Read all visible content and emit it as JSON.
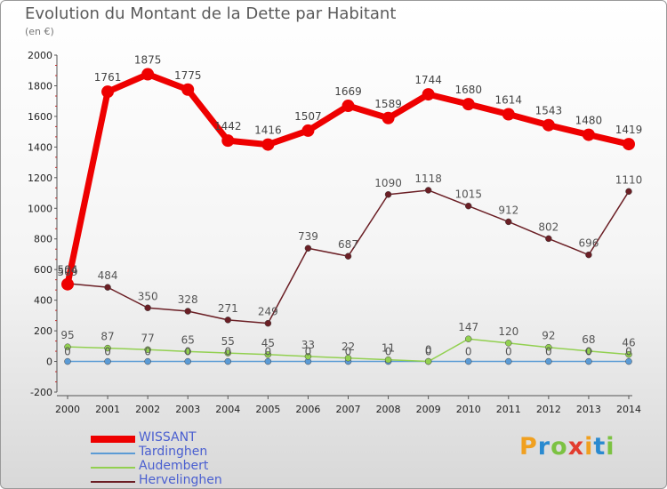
{
  "title": "Evolution du Montant de la Dette par Habitant",
  "subtitle": "(en €)",
  "logo": {
    "text": "Proxiti",
    "colors": [
      "#f0a020",
      "#2a8ad0",
      "#7cc242",
      "#e23c2e",
      "#f0a020",
      "#2a8ad0",
      "#7cc242"
    ]
  },
  "chart_data": {
    "type": "line",
    "title": "Evolution du Montant de la Dette par Habitant",
    "subtitle": "(en €)",
    "xlabel": "",
    "ylabel": "",
    "x": [
      "2000",
      "2001",
      "2002",
      "2003",
      "2004",
      "2005",
      "2006",
      "2007",
      "2008",
      "2009",
      "2010",
      "2011",
      "2012",
      "2013",
      "2014"
    ],
    "ylim": [
      -200,
      2000
    ],
    "yticks": [
      "-200",
      "0",
      "200",
      "400",
      "600",
      "800",
      "1000",
      "1200",
      "1400",
      "1600",
      "1800",
      "2000"
    ],
    "grid": false,
    "legend_position": "bottom-left",
    "series": [
      {
        "name": "WISSANT",
        "color": "#ee0000",
        "values": [
          504,
          1761,
          1875,
          1775,
          1442,
          1416,
          1507,
          1669,
          1589,
          1744,
          1680,
          1614,
          1543,
          1480,
          1419
        ],
        "labels": [
          "504",
          "1761",
          "1875",
          "1775",
          "1442",
          "1416",
          "1507",
          "1669",
          "1589",
          "1744",
          "1680",
          "1614",
          "1543",
          "1480",
          "1419"
        ]
      },
      {
        "name": "Tardinghen",
        "color": "#5b9bd5",
        "values": [
          0,
          0,
          0,
          0,
          0,
          0,
          0,
          0,
          0,
          0,
          0,
          0,
          0,
          0,
          0
        ],
        "labels": [
          "0",
          "0",
          "0",
          "0",
          "0",
          "0",
          "0",
          "0",
          "0",
          "0",
          "0",
          "0",
          "0",
          "0",
          "0"
        ]
      },
      {
        "name": "Audembert",
        "color": "#92d050",
        "values": [
          95,
          87,
          77,
          65,
          55,
          45,
          33,
          22,
          11,
          0,
          147,
          120,
          92,
          68,
          46
        ],
        "labels": [
          "95",
          "87",
          "77",
          "65",
          "55",
          "45",
          "33",
          "22",
          "11",
          "0",
          "147",
          "120",
          "92",
          "68",
          "46"
        ]
      },
      {
        "name": "Hervelinghen",
        "color": "#6b1f25",
        "values": [
          509,
          484,
          350,
          328,
          271,
          249,
          739,
          687,
          1090,
          1118,
          1015,
          912,
          802,
          696,
          1110
        ],
        "labels": [
          "509",
          "484",
          "350",
          "328",
          "271",
          "249",
          "739",
          "687",
          "1090",
          "1118",
          "1015",
          "912",
          "802",
          "696",
          "1110"
        ]
      }
    ]
  }
}
